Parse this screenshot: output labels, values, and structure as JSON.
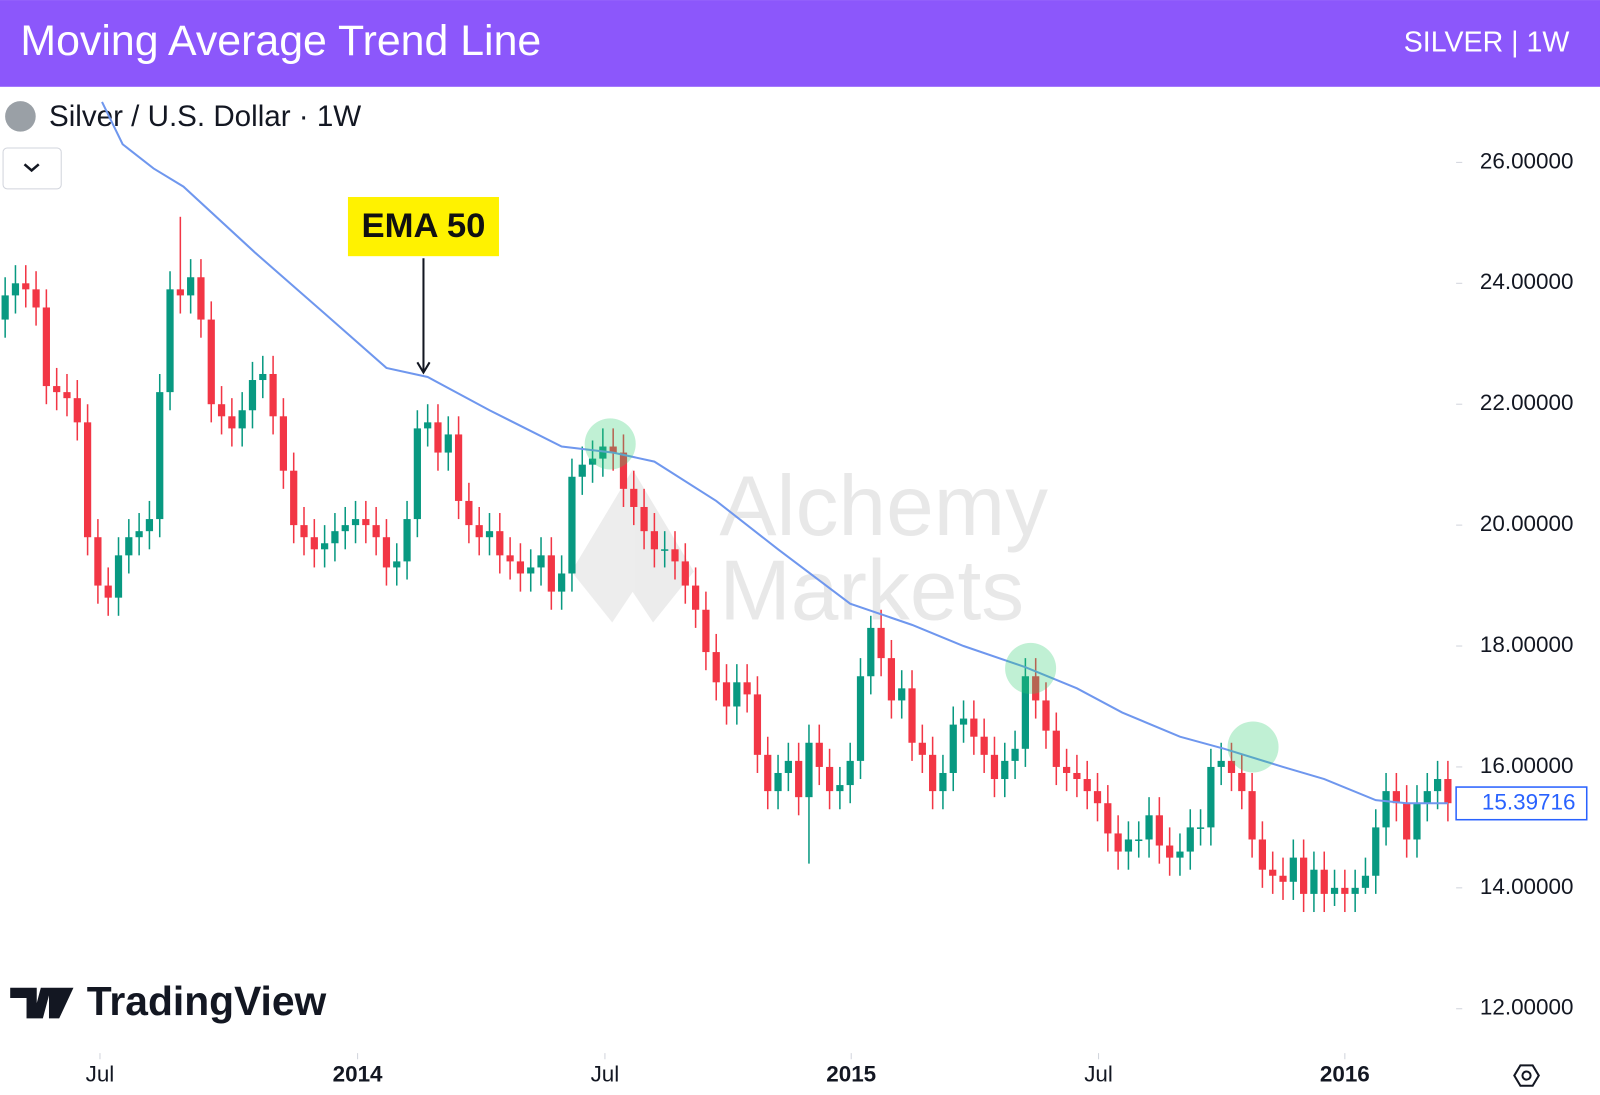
{
  "header": {
    "title": "Moving Average Trend Line",
    "badge": "SILVER | 1W"
  },
  "chart_data": {
    "type": "candlestick",
    "symbol": "Silver / U.S. Dollar · 1W",
    "watermark": [
      "Alchemy",
      "Markets"
    ],
    "logo": "TradingView",
    "last_price": 15.39716,
    "xlim": [
      -0.5,
      140.6
    ],
    "ylim": [
      11.3,
      27.2
    ],
    "xticks": [
      {
        "value": 9.2,
        "label": "Jul"
      },
      {
        "value": 34.2,
        "label": "2014"
      },
      {
        "value": 58.2,
        "label": "Jul"
      },
      {
        "value": 82.1,
        "label": "2015"
      },
      {
        "value": 106.1,
        "label": "Jul"
      },
      {
        "value": 130,
        "label": "2016"
      }
    ],
    "yticks": [
      {
        "value": 26,
        "label": "26.00000"
      },
      {
        "value": 24,
        "label": "24.00000"
      },
      {
        "value": 22,
        "label": "22.00000"
      },
      {
        "value": 20,
        "label": "20.00000"
      },
      {
        "value": 18,
        "label": "18.00000"
      },
      {
        "value": 16,
        "label": "16.00000"
      },
      {
        "value": 14,
        "label": "14.00000"
      },
      {
        "value": 12,
        "label": "12.00000"
      }
    ],
    "series": [
      {
        "up_color": "#089981",
        "down_color": "#f23645",
        "open": [
          23.4,
          23.8,
          24.0,
          23.9,
          23.6,
          22.3,
          22.2,
          22.1,
          21.7,
          19.8,
          19.0,
          18.8,
          19.5,
          19.8,
          19.9,
          20.1,
          22.2,
          23.9,
          23.8,
          24.1,
          23.4,
          22.0,
          21.8,
          21.6,
          21.9,
          22.4,
          22.5,
          21.8,
          20.9,
          20.0,
          19.8,
          19.6,
          19.7,
          19.9,
          20.0,
          20.1,
          20.0,
          19.8,
          19.3,
          19.4,
          20.1,
          21.6,
          21.7,
          21.2,
          21.5,
          20.4,
          20.0,
          19.8,
          19.9,
          19.5,
          19.4,
          19.2,
          19.3,
          19.5,
          18.9,
          19.2,
          20.8,
          21.0,
          21.1,
          21.3,
          21.2,
          20.6,
          20.3,
          19.9,
          19.6,
          19.6,
          19.4,
          19.0,
          18.6,
          17.9,
          17.4,
          17.0,
          17.4,
          17.2,
          16.2,
          15.6,
          15.9,
          16.1,
          15.5,
          16.4,
          16.0,
          15.6,
          15.7,
          16.1,
          17.5,
          18.3,
          17.8,
          17.1,
          17.3,
          16.4,
          16.2,
          15.6,
          15.9,
          16.7,
          16.8,
          16.5,
          16.2,
          15.8,
          16.1,
          16.3,
          17.5,
          17.1,
          16.6,
          16.0,
          15.9,
          15.8,
          15.6,
          15.4,
          14.9,
          14.6,
          14.8,
          14.8,
          15.2,
          14.7,
          14.5,
          14.6,
          15.0,
          15.0,
          16.0,
          16.1,
          15.9,
          15.6,
          14.8,
          14.3,
          14.2,
          14.1,
          14.5,
          13.9,
          14.3,
          13.9,
          14.0,
          13.9,
          14.0,
          14.2,
          15.0,
          15.6,
          15.4,
          14.8,
          15.4,
          15.6,
          15.8
        ],
        "high": [
          24.1,
          24.3,
          24.3,
          24.2,
          23.9,
          22.6,
          22.5,
          22.4,
          22.0,
          20.1,
          19.3,
          19.8,
          20.1,
          20.2,
          20.4,
          22.5,
          24.2,
          25.1,
          24.4,
          24.4,
          23.7,
          22.3,
          22.1,
          22.2,
          22.7,
          22.8,
          22.8,
          22.1,
          21.2,
          20.3,
          20.1,
          20.0,
          20.2,
          20.3,
          20.4,
          20.4,
          20.3,
          20.1,
          19.7,
          20.4,
          21.9,
          22.0,
          22.0,
          21.8,
          21.8,
          20.7,
          20.3,
          20.2,
          20.2,
          19.8,
          19.7,
          19.6,
          19.8,
          19.8,
          19.5,
          21.1,
          21.3,
          21.4,
          21.6,
          21.6,
          21.5,
          20.9,
          20.6,
          20.2,
          19.9,
          19.9,
          19.7,
          19.3,
          18.9,
          18.2,
          17.7,
          17.7,
          17.7,
          17.5,
          16.5,
          16.2,
          16.4,
          16.4,
          16.7,
          16.7,
          16.3,
          16.0,
          16.4,
          17.8,
          18.5,
          18.6,
          18.1,
          17.6,
          17.6,
          16.7,
          16.5,
          16.2,
          17.0,
          17.1,
          17.1,
          16.8,
          16.5,
          16.4,
          16.6,
          17.8,
          17.8,
          17.4,
          16.9,
          16.3,
          16.2,
          16.1,
          15.9,
          15.7,
          15.2,
          15.1,
          15.1,
          15.5,
          15.5,
          15.0,
          14.9,
          15.3,
          15.3,
          16.3,
          16.4,
          16.4,
          16.2,
          15.9,
          15.1,
          14.6,
          14.5,
          14.8,
          14.8,
          14.6,
          14.6,
          14.3,
          14.3,
          14.3,
          14.5,
          15.3,
          15.9,
          15.9,
          15.7,
          15.7,
          15.9,
          16.1,
          16.1
        ],
        "low": [
          23.1,
          23.5,
          23.6,
          23.3,
          22.0,
          21.9,
          21.8,
          21.4,
          19.5,
          18.7,
          18.5,
          18.5,
          19.2,
          19.5,
          19.6,
          19.8,
          21.9,
          23.5,
          23.5,
          23.1,
          21.7,
          21.5,
          21.3,
          21.3,
          21.6,
          22.1,
          21.5,
          20.6,
          19.7,
          19.5,
          19.3,
          19.3,
          19.4,
          19.6,
          19.7,
          19.7,
          19.5,
          19.0,
          19.0,
          19.1,
          19.8,
          21.3,
          20.9,
          20.9,
          20.1,
          19.7,
          19.5,
          19.5,
          19.2,
          19.1,
          18.9,
          18.9,
          19.0,
          18.6,
          18.6,
          18.9,
          20.5,
          20.7,
          20.8,
          20.9,
          20.3,
          20.0,
          19.6,
          19.3,
          19.3,
          19.1,
          18.7,
          18.3,
          17.6,
          17.1,
          16.7,
          16.7,
          16.9,
          15.9,
          15.3,
          15.3,
          15.6,
          15.2,
          14.4,
          15.7,
          15.3,
          15.3,
          15.4,
          15.8,
          17.2,
          17.5,
          16.8,
          16.8,
          16.1,
          15.9,
          15.3,
          15.3,
          15.6,
          16.4,
          16.2,
          15.9,
          15.5,
          15.5,
          15.8,
          16.0,
          16.8,
          16.3,
          15.7,
          15.6,
          15.5,
          15.3,
          15.1,
          14.6,
          14.3,
          14.3,
          14.5,
          14.5,
          14.4,
          14.2,
          14.2,
          14.3,
          14.7,
          14.7,
          15.7,
          15.6,
          15.3,
          14.5,
          14.0,
          13.9,
          13.8,
          13.8,
          13.6,
          13.6,
          13.6,
          13.7,
          13.6,
          13.6,
          13.9,
          13.9,
          14.7,
          15.1,
          14.5,
          14.5,
          15.1,
          15.3,
          15.1
        ],
        "close": [
          23.8,
          24.0,
          23.9,
          23.6,
          22.3,
          22.2,
          22.1,
          21.7,
          19.8,
          19.0,
          18.8,
          19.5,
          19.8,
          19.9,
          20.1,
          22.2,
          23.9,
          23.8,
          24.1,
          23.4,
          22.0,
          21.8,
          21.6,
          21.9,
          22.4,
          22.5,
          21.8,
          20.9,
          20.0,
          19.8,
          19.6,
          19.7,
          19.9,
          20.0,
          20.1,
          20.0,
          19.8,
          19.3,
          19.4,
          20.1,
          21.6,
          21.7,
          21.2,
          21.5,
          20.4,
          20.0,
          19.8,
          19.9,
          19.5,
          19.4,
          19.2,
          19.3,
          19.5,
          18.9,
          19.2,
          20.8,
          21.0,
          21.1,
          21.3,
          21.2,
          20.6,
          20.3,
          19.9,
          19.6,
          19.6,
          19.4,
          19.0,
          18.6,
          17.9,
          17.4,
          17.0,
          17.4,
          17.2,
          16.2,
          15.6,
          15.9,
          16.1,
          15.5,
          16.4,
          16.0,
          15.6,
          15.7,
          16.1,
          17.5,
          18.3,
          17.8,
          17.1,
          17.3,
          16.4,
          16.2,
          15.6,
          15.9,
          16.7,
          16.8,
          16.5,
          16.2,
          15.8,
          16.1,
          16.3,
          17.5,
          17.1,
          16.6,
          16.0,
          15.9,
          15.8,
          15.6,
          15.4,
          14.9,
          14.6,
          14.8,
          14.8,
          15.2,
          14.7,
          14.5,
          14.6,
          15.0,
          15.0,
          16.0,
          16.1,
          15.9,
          15.6,
          14.8,
          14.3,
          14.2,
          14.1,
          14.5,
          13.9,
          14.3,
          13.9,
          14.0,
          13.9,
          14.0,
          14.2,
          15.0,
          15.6,
          15.4,
          14.8,
          15.4,
          15.6,
          15.8,
          15.4
        ]
      },
      {
        "type": "line",
        "name": "EMA 50",
        "color": "#6f97ee",
        "x": [
          9.4,
          11.4,
          14.4,
          17.3,
          24.3,
          31,
          37,
          41,
          47,
          54,
          59,
          63,
          69,
          75,
          82,
          88,
          93,
          99,
          104,
          108.4,
          114,
          118.3,
          124,
          128,
          133,
          136,
          140
        ],
        "values": [
          27.0,
          26.3,
          25.9,
          25.6,
          24.5,
          23.5,
          22.6,
          22.45,
          21.9,
          21.3,
          21.2,
          21.05,
          20.4,
          19.6,
          18.7,
          18.35,
          18.0,
          17.65,
          17.3,
          16.9,
          16.5,
          16.3,
          16.0,
          15.8,
          15.45,
          15.4,
          15.4
        ]
      }
    ]
  }
}
